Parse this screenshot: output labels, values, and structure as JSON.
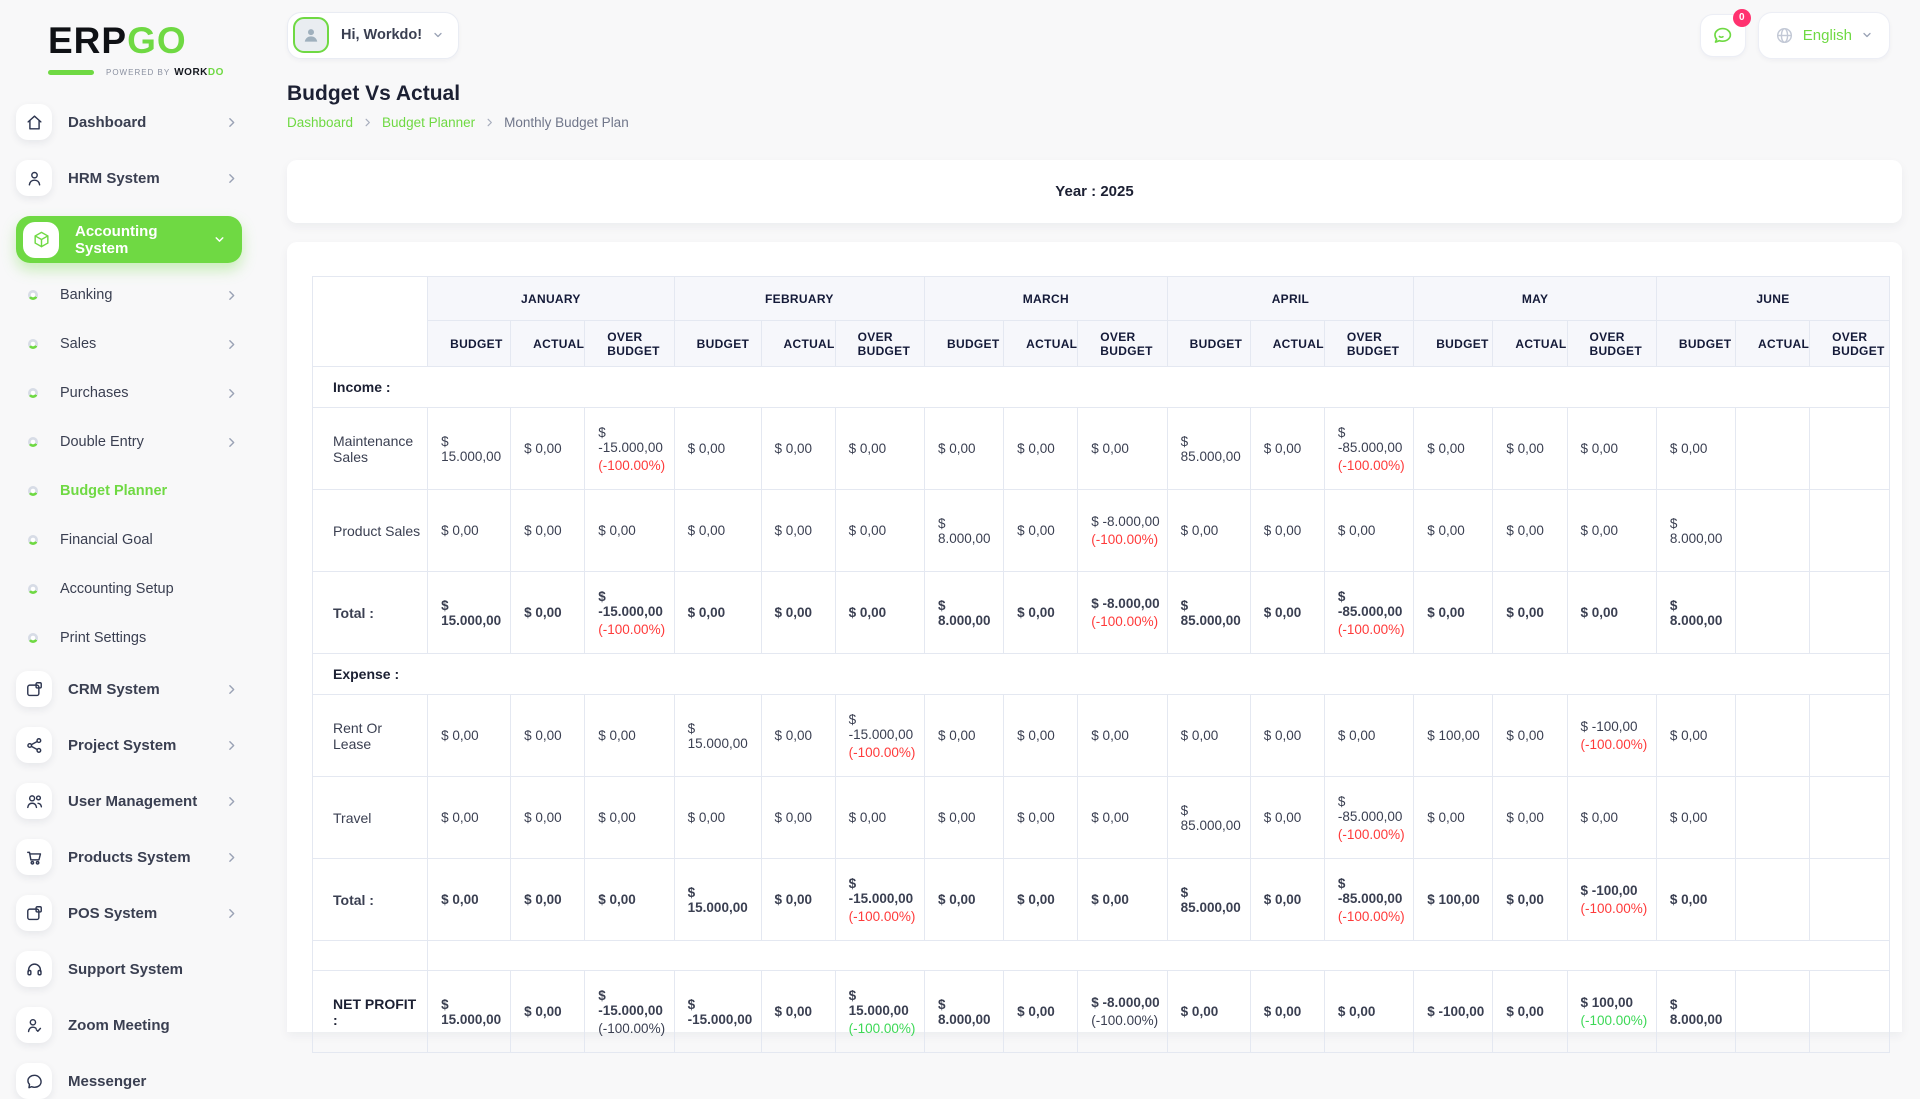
{
  "brand": {
    "erp": "ERP",
    "go": "GO",
    "powered": "Powered By",
    "work": "WORK",
    "do": "DO"
  },
  "header": {
    "greeting": "Hi, Workdo!",
    "notification_count": "0",
    "language": "English"
  },
  "sidebar": {
    "items": [
      {
        "label": "Dashboard",
        "icon": "home-icon",
        "type": "main",
        "chevron": "right"
      },
      {
        "label": "HRM System",
        "icon": "hrm-icon",
        "type": "main",
        "chevron": "right"
      },
      {
        "label": "Accounting System",
        "icon": "accounting-icon",
        "type": "main",
        "chevron": "down",
        "active": true
      },
      {
        "label": "Banking",
        "type": "sub",
        "chevron": "right"
      },
      {
        "label": "Sales",
        "type": "sub",
        "chevron": "right"
      },
      {
        "label": "Purchases",
        "type": "sub",
        "chevron": "right"
      },
      {
        "label": "Double Entry",
        "type": "sub",
        "chevron": "right"
      },
      {
        "label": "Budget Planner",
        "type": "sub",
        "active": true
      },
      {
        "label": "Financial Goal",
        "type": "sub"
      },
      {
        "label": "Accounting Setup",
        "type": "sub"
      },
      {
        "label": "Print Settings",
        "type": "sub"
      },
      {
        "label": "CRM System",
        "icon": "crm-icon",
        "type": "main",
        "chevron": "right"
      },
      {
        "label": "Project System",
        "icon": "project-icon",
        "type": "main",
        "chevron": "right"
      },
      {
        "label": "User Management",
        "icon": "users-icon",
        "type": "main",
        "chevron": "right"
      },
      {
        "label": "Products System",
        "icon": "cart-icon",
        "type": "main",
        "chevron": "right"
      },
      {
        "label": "POS System",
        "icon": "pos-icon",
        "type": "main",
        "chevron": "right"
      },
      {
        "label": "Support System",
        "icon": "headset-icon",
        "type": "main"
      },
      {
        "label": "Zoom Meeting",
        "icon": "zoom-icon",
        "type": "main"
      },
      {
        "label": "Messenger",
        "icon": "messenger-icon",
        "type": "main"
      }
    ]
  },
  "page": {
    "title": "Budget Vs Actual",
    "breadcrumb": [
      {
        "label": "Dashboard",
        "link": true
      },
      {
        "label": "Budget Planner",
        "link": true
      },
      {
        "label": "Monthly Budget Plan",
        "link": false
      }
    ],
    "year_label": "Year : 2025"
  },
  "colors": {
    "brand_green": "#6fd943",
    "negative_red": "#ff3a3a",
    "positive_green": "#3cd856",
    "badge_pink": "#ff316f"
  },
  "table": {
    "months": [
      "JANUARY",
      "FEBRUARY",
      "MARCH",
      "APRIL",
      "MAY",
      "JUNE"
    ],
    "columns": [
      "BUDGET",
      "ACTUAL",
      "OVER BUDGET"
    ],
    "sections": [
      {
        "title": "Income :",
        "rows": [
          {
            "label": "Maintenance Sales",
            "bold": false,
            "cells": [
              "$ 15.000,00",
              "$ 0,00",
              {
                "v": "$ -15.000,00",
                "p": "(-100.00%)",
                "c": "red"
              },
              "$ 0,00",
              "$ 0,00",
              "$ 0,00",
              "$ 0,00",
              "$ 0,00",
              "$ 0,00",
              "$ 85.000,00",
              "$ 0,00",
              {
                "v": "$ -85.000,00",
                "p": "(-100.00%)",
                "c": "red"
              },
              "$ 0,00",
              "$ 0,00",
              "$ 0,00",
              "$ 0,00"
            ]
          },
          {
            "label": "Product Sales",
            "bold": false,
            "cells": [
              "$ 0,00",
              "$ 0,00",
              "$ 0,00",
              "$ 0,00",
              "$ 0,00",
              "$ 0,00",
              "$ 8.000,00",
              "$ 0,00",
              {
                "v": "$ -8.000,00",
                "p": "(-100.00%)",
                "c": "red"
              },
              "$ 0,00",
              "$ 0,00",
              "$ 0,00",
              "$ 0,00",
              "$ 0,00",
              "$ 0,00",
              "$ 8.000,00"
            ]
          },
          {
            "label": "Total :",
            "bold": true,
            "cells": [
              "$ 15.000,00",
              "$ 0,00",
              {
                "v": "$ -15.000,00",
                "p": "(-100.00%)",
                "c": "red"
              },
              "$ 0,00",
              "$ 0,00",
              "$ 0,00",
              "$ 8.000,00",
              "$ 0,00",
              {
                "v": "$ -8.000,00",
                "p": "(-100.00%)",
                "c": "red"
              },
              "$ 85.000,00",
              "$ 0,00",
              {
                "v": "$ -85.000,00",
                "p": "(-100.00%)",
                "c": "red"
              },
              "$ 0,00",
              "$ 0,00",
              "$ 0,00",
              "$ 8.000,00"
            ]
          }
        ]
      },
      {
        "title": "Expense :",
        "rows": [
          {
            "label": "Rent Or Lease",
            "bold": false,
            "cells": [
              "$ 0,00",
              "$ 0,00",
              "$ 0,00",
              "$ 15.000,00",
              "$ 0,00",
              {
                "v": "$ -15.000,00",
                "p": "(-100.00%)",
                "c": "red"
              },
              "$ 0,00",
              "$ 0,00",
              "$ 0,00",
              "$ 0,00",
              "$ 0,00",
              "$ 0,00",
              "$ 100,00",
              "$ 0,00",
              {
                "v": "$ -100,00",
                "p": "(-100.00%)",
                "c": "red"
              },
              "$ 0,00"
            ]
          },
          {
            "label": "Travel",
            "bold": false,
            "cells": [
              "$ 0,00",
              "$ 0,00",
              "$ 0,00",
              "$ 0,00",
              "$ 0,00",
              "$ 0,00",
              "$ 0,00",
              "$ 0,00",
              "$ 0,00",
              "$ 85.000,00",
              "$ 0,00",
              {
                "v": "$ -85.000,00",
                "p": "(-100.00%)",
                "c": "red"
              },
              "$ 0,00",
              "$ 0,00",
              "$ 0,00",
              "$ 0,00"
            ]
          },
          {
            "label": "Total :",
            "bold": true,
            "cells": [
              "$ 0,00",
              "$ 0,00",
              "$ 0,00",
              "$ 15.000,00",
              "$ 0,00",
              {
                "v": "$ -15.000,00",
                "p": "(-100.00%)",
                "c": "red"
              },
              "$ 0,00",
              "$ 0,00",
              "$ 0,00",
              "$ 85.000,00",
              "$ 0,00",
              {
                "v": "$ -85.000,00",
                "p": "(-100.00%)",
                "c": "red"
              },
              "$ 100,00",
              "$ 0,00",
              {
                "v": "$ -100,00",
                "p": "(-100.00%)",
                "c": "red"
              },
              "$ 0,00"
            ]
          }
        ]
      }
    ],
    "net_profit": {
      "label": "NET PROFIT :",
      "bold": true,
      "cells": [
        "$ 15.000,00",
        "$ 0,00",
        {
          "v": "$ -15.000,00",
          "p": "(-100.00%)",
          "c": "dark"
        },
        "$ -15.000,00",
        "$ 0,00",
        {
          "v": "$ 15.000,00",
          "p": "(-100.00%)",
          "c": "green"
        },
        "$ 8.000,00",
        "$ 0,00",
        {
          "v": "$ -8.000,00",
          "p": "(-100.00%)",
          "c": "dark"
        },
        "$ 0,00",
        "$ 0,00",
        "$ 0,00",
        "$ -100,00",
        "$ 0,00",
        {
          "v": "$ 100,00",
          "p": "(-100.00%)",
          "c": "green"
        },
        "$ 8.000,00"
      ]
    }
  }
}
